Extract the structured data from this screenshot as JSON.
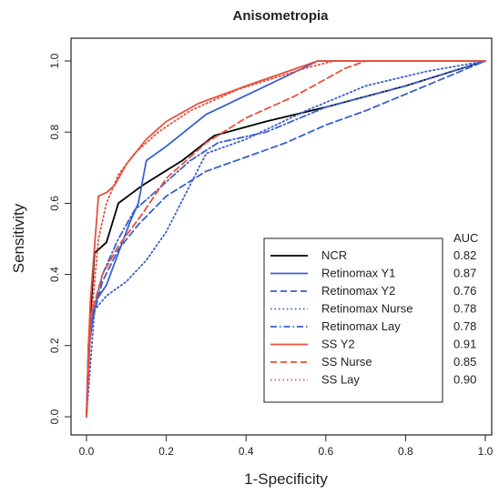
{
  "chart_data": {
    "type": "line",
    "title": "Anisometropia",
    "xlabel": "1-Specificity",
    "ylabel": "Sensitivity",
    "xlim": [
      0,
      1
    ],
    "ylim": [
      0,
      1
    ],
    "x_ticks": [
      "0.0",
      "0.2",
      "0.4",
      "0.6",
      "0.8",
      "1.0"
    ],
    "y_ticks": [
      "0.0",
      "0.2",
      "0.4",
      "0.6",
      "0.8",
      "1.0"
    ],
    "grid": false,
    "legend_position": "bottom-right",
    "auc_header": "AUC",
    "series": [
      {
        "name": "NCR",
        "auc": "0.82",
        "color": "#000000",
        "style": "solid",
        "points": [
          [
            0,
            0
          ],
          [
            0.005,
            0.2
          ],
          [
            0.02,
            0.46
          ],
          [
            0.05,
            0.49
          ],
          [
            0.08,
            0.6
          ],
          [
            0.14,
            0.65
          ],
          [
            0.24,
            0.72
          ],
          [
            0.32,
            0.79
          ],
          [
            0.45,
            0.83
          ],
          [
            0.6,
            0.87
          ],
          [
            0.8,
            0.93
          ],
          [
            1.0,
            1.0
          ]
        ]
      },
      {
        "name": "Retinomax Y1",
        "auc": "0.87",
        "color": "#3a5fcd",
        "style": "solid",
        "points": [
          [
            0,
            0
          ],
          [
            0.005,
            0.18
          ],
          [
            0.02,
            0.32
          ],
          [
            0.05,
            0.37
          ],
          [
            0.08,
            0.46
          ],
          [
            0.11,
            0.55
          ],
          [
            0.13,
            0.6
          ],
          [
            0.15,
            0.72
          ],
          [
            0.2,
            0.76
          ],
          [
            0.3,
            0.85
          ],
          [
            0.45,
            0.93
          ],
          [
            0.58,
            1.0
          ],
          [
            1.0,
            1.0
          ]
        ]
      },
      {
        "name": "Retinomax Y2",
        "auc": "0.76",
        "color": "#3a5fcd",
        "style": "dashed",
        "points": [
          [
            0,
            0
          ],
          [
            0.01,
            0.25
          ],
          [
            0.04,
            0.38
          ],
          [
            0.08,
            0.47
          ],
          [
            0.13,
            0.54
          ],
          [
            0.2,
            0.62
          ],
          [
            0.3,
            0.69
          ],
          [
            0.4,
            0.73
          ],
          [
            0.5,
            0.77
          ],
          [
            0.6,
            0.82
          ],
          [
            0.7,
            0.86
          ],
          [
            0.85,
            0.93
          ],
          [
            1.0,
            1.0
          ]
        ]
      },
      {
        "name": "Retinomax Nurse",
        "auc": "0.78",
        "color": "#3a5fcd",
        "style": "dotted",
        "points": [
          [
            0,
            0
          ],
          [
            0.02,
            0.3
          ],
          [
            0.05,
            0.34
          ],
          [
            0.1,
            0.38
          ],
          [
            0.15,
            0.44
          ],
          [
            0.2,
            0.52
          ],
          [
            0.3,
            0.74
          ],
          [
            0.4,
            0.78
          ],
          [
            0.55,
            0.86
          ],
          [
            0.7,
            0.93
          ],
          [
            0.85,
            0.97
          ],
          [
            1.0,
            1.0
          ]
        ]
      },
      {
        "name": "Retinomax Lay",
        "auc": "0.78",
        "color": "#3a5fcd",
        "style": "dashdot",
        "points": [
          [
            0,
            0
          ],
          [
            0.01,
            0.26
          ],
          [
            0.04,
            0.4
          ],
          [
            0.08,
            0.5
          ],
          [
            0.12,
            0.58
          ],
          [
            0.18,
            0.64
          ],
          [
            0.26,
            0.72
          ],
          [
            0.33,
            0.77
          ],
          [
            0.45,
            0.8
          ],
          [
            0.6,
            0.87
          ],
          [
            0.8,
            0.93
          ],
          [
            1.0,
            1.0
          ]
        ]
      },
      {
        "name": "SS Y2",
        "auc": "0.91",
        "color": "#e8503c",
        "style": "solid",
        "points": [
          [
            0,
            0
          ],
          [
            0.005,
            0.2
          ],
          [
            0.01,
            0.33
          ],
          [
            0.03,
            0.62
          ],
          [
            0.05,
            0.63
          ],
          [
            0.07,
            0.65
          ],
          [
            0.1,
            0.71
          ],
          [
            0.15,
            0.78
          ],
          [
            0.2,
            0.83
          ],
          [
            0.28,
            0.88
          ],
          [
            0.4,
            0.93
          ],
          [
            0.58,
            1.0
          ],
          [
            1.0,
            1.0
          ]
        ]
      },
      {
        "name": "SS Nurse",
        "auc": "0.85",
        "color": "#e8503c",
        "style": "dashed",
        "points": [
          [
            0,
            0
          ],
          [
            0.01,
            0.28
          ],
          [
            0.04,
            0.4
          ],
          [
            0.08,
            0.48
          ],
          [
            0.14,
            0.57
          ],
          [
            0.2,
            0.67
          ],
          [
            0.3,
            0.77
          ],
          [
            0.4,
            0.84
          ],
          [
            0.52,
            0.9
          ],
          [
            0.65,
            0.98
          ],
          [
            0.7,
            1.0
          ],
          [
            1.0,
            1.0
          ]
        ]
      },
      {
        "name": "SS Lay",
        "auc": "0.90",
        "color": "#e8503c",
        "style": "dotted",
        "points": [
          [
            0,
            0
          ],
          [
            0.01,
            0.25
          ],
          [
            0.03,
            0.5
          ],
          [
            0.05,
            0.6
          ],
          [
            0.08,
            0.68
          ],
          [
            0.12,
            0.74
          ],
          [
            0.18,
            0.8
          ],
          [
            0.26,
            0.86
          ],
          [
            0.38,
            0.92
          ],
          [
            0.55,
            0.98
          ],
          [
            0.62,
            1.0
          ],
          [
            1.0,
            1.0
          ]
        ]
      }
    ]
  }
}
